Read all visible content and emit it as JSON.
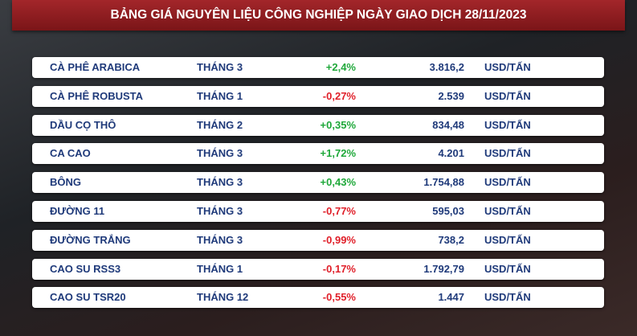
{
  "header": {
    "title": "BẢNG GIÁ NGUYÊN LIỆU CÔNG NGHIỆP NGÀY GIAO DỊCH 28/11/2023"
  },
  "table": {
    "rows": [
      [
        "CÀ PHÊ ARABICA",
        "THÁNG 3",
        "+2,4%",
        "3.816,2",
        "USD/TẤN"
      ],
      [
        "CÀ PHÊ ROBUSTA",
        "THÁNG 1",
        "-0,27%",
        "2.539",
        "USD/TẤN"
      ],
      [
        "DẦU CỌ THÔ",
        "THÁNG 2",
        "+0,35%",
        "834,48",
        "USD/TẤN"
      ],
      [
        "CA CAO",
        "THÁNG 3",
        "+1,72%",
        "4.201",
        "USD/TẤN"
      ],
      [
        "BÔNG",
        "THÁNG 3",
        "+0,43%",
        "1.754,88",
        "USD/TẤN"
      ],
      [
        "ĐƯỜNG 11",
        "THÁNG 3",
        "-0,77%",
        "595,03",
        "USD/TẤN"
      ],
      [
        "ĐƯỜNG TRẮNG",
        "THÁNG 3",
        "-0,99%",
        "738,2",
        "USD/TẤN"
      ],
      [
        "CAO SU RSS3",
        "THÁNG 1",
        "-0,17%",
        "1.792,79",
        "USD/TẤN"
      ],
      [
        "CAO SU TSR20",
        "THÁNG 12",
        "-0,55%",
        "1.447",
        "USD/TẤN"
      ]
    ]
  }
}
